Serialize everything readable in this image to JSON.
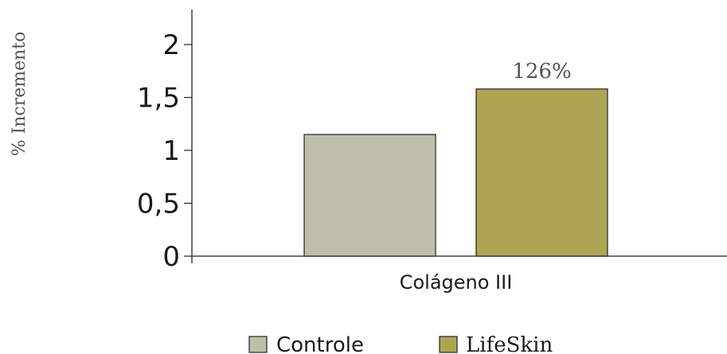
{
  "chart_data": {
    "type": "bar",
    "categories": [
      "Colágeno III"
    ],
    "series": [
      {
        "name": "Controle",
        "values": [
          1.15
        ],
        "color": "#bdbfaa"
      },
      {
        "name": "LifeSkin",
        "values": [
          1.58
        ],
        "color": "#ada553"
      }
    ],
    "ylabel": "% Incremento",
    "xlabel": "",
    "ylim": [
      0,
      2
    ],
    "yticks": [
      0,
      0.5,
      1,
      1.5,
      2
    ],
    "ytick_labels": [
      "0",
      "0,5",
      "1",
      "1,5",
      "2"
    ],
    "data_labels": [
      {
        "series": "LifeSkin",
        "category": "Colágeno III",
        "text": "126%"
      }
    ],
    "grid": false,
    "legend_position": "bottom"
  }
}
